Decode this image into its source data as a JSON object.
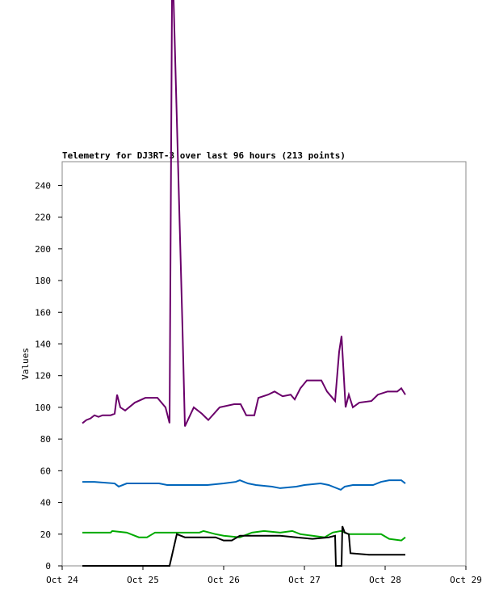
{
  "chart_data": {
    "type": "line",
    "title": "Telemetry for DJ3RT-3 over last 96 hours (213 points)",
    "y_label": "Values",
    "xlim": [
      0,
      5
    ],
    "xticks": [
      {
        "value": 0,
        "label": "Oct 24"
      },
      {
        "value": 1,
        "label": "Oct 25"
      },
      {
        "value": 2,
        "label": "Oct 26"
      },
      {
        "value": 3,
        "label": "Oct 27"
      },
      {
        "value": 4,
        "label": "Oct 28"
      },
      {
        "value": 5,
        "label": "Oct 29"
      }
    ],
    "ylim": [
      0,
      255
    ],
    "yticks": [
      0,
      20,
      40,
      60,
      80,
      100,
      120,
      140,
      160,
      180,
      200,
      220,
      240
    ],
    "series": [
      {
        "color": "#6a006a",
        "x": [
          0.25,
          0.3,
          0.35,
          0.4,
          0.45,
          0.5,
          0.6,
          0.65,
          0.68,
          0.72,
          0.78,
          0.9,
          1.03,
          1.18,
          1.28,
          1.33,
          1.36,
          1.38,
          1.49,
          1.52,
          1.63,
          1.73,
          1.81,
          1.95,
          2.13,
          2.21,
          2.28,
          2.38,
          2.43,
          2.55,
          2.63,
          2.73,
          2.83,
          2.88,
          2.95,
          3.03,
          3.21,
          3.28,
          3.38,
          3.43,
          3.46,
          3.51,
          3.55,
          3.6,
          3.68,
          3.83,
          3.91,
          4.03,
          4.15,
          4.2,
          4.25
        ],
        "values": [
          90,
          92,
          93,
          95,
          94,
          95,
          95,
          96,
          108,
          100,
          98,
          103,
          106,
          106,
          100,
          90,
          357,
          357,
          150,
          88,
          100,
          96,
          92,
          100,
          102,
          102,
          95,
          95,
          106,
          108,
          110,
          107,
          108,
          105,
          112,
          117,
          117,
          110,
          104,
          135,
          145,
          100,
          108,
          100,
          103,
          104,
          108,
          110,
          110,
          112,
          108
        ]
      },
      {
        "color": "#0066bb",
        "x": [
          0.25,
          0.4,
          0.65,
          0.7,
          0.8,
          1.2,
          1.3,
          1.8,
          2.0,
          2.15,
          2.2,
          2.3,
          2.4,
          2.6,
          2.7,
          2.9,
          3.0,
          3.2,
          3.3,
          3.45,
          3.5,
          3.6,
          3.85,
          3.95,
          4.05,
          4.2,
          4.25
        ],
        "values": [
          53,
          53,
          52,
          50,
          52,
          52,
          51,
          51,
          52,
          53,
          54,
          52,
          51,
          50,
          49,
          50,
          51,
          52,
          51,
          48,
          50,
          51,
          51,
          53,
          54,
          54,
          52
        ]
      },
      {
        "color": "#00aa00",
        "x": [
          0.25,
          0.6,
          0.62,
          0.8,
          0.95,
          1.05,
          1.15,
          1.7,
          1.75,
          1.9,
          2.0,
          2.2,
          2.35,
          2.5,
          2.7,
          2.85,
          2.95,
          3.1,
          3.25,
          3.35,
          3.45,
          3.55,
          3.95,
          4.05,
          4.2,
          4.25
        ],
        "values": [
          21,
          21,
          22,
          21,
          18,
          18,
          21,
          21,
          22,
          20,
          19,
          18,
          21,
          22,
          21,
          22,
          20,
          19,
          18,
          21,
          22,
          20,
          20,
          17,
          16,
          18
        ]
      },
      {
        "color": "#000000",
        "x": [
          0.25,
          1.33,
          1.42,
          1.52,
          1.9,
          2.0,
          2.1,
          2.2,
          2.7,
          2.9,
          3.1,
          3.3,
          3.38,
          3.39,
          3.46,
          3.47,
          3.5,
          3.55,
          3.57,
          3.8,
          4.25
        ],
        "values": [
          0,
          0,
          20,
          18,
          18,
          16,
          16,
          19,
          19,
          18,
          17,
          18,
          19,
          0,
          0,
          25,
          21,
          20,
          8,
          7,
          7
        ]
      }
    ]
  }
}
